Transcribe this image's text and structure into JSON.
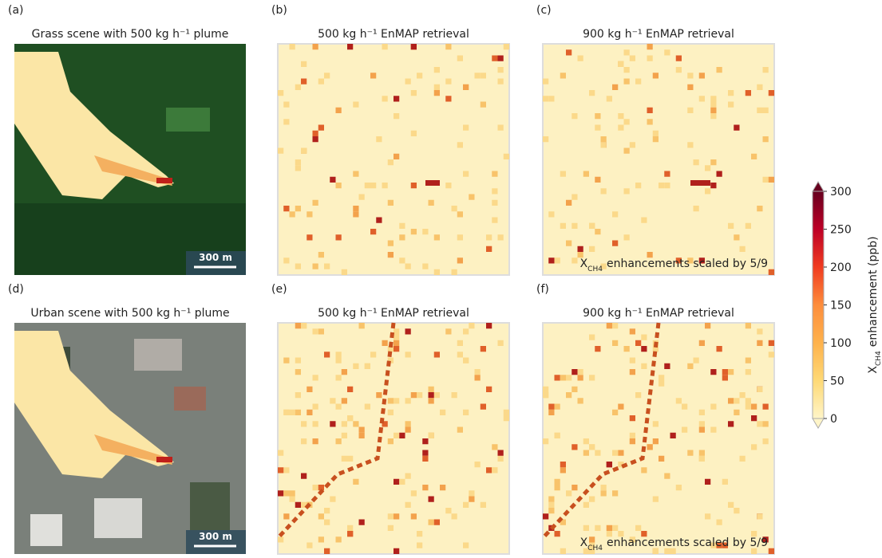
{
  "panels": [
    {
      "label": "(a)",
      "title": "Grass scene with 500 kg h⁻¹ plume",
      "scale_bar": "300 m"
    },
    {
      "label": "(b)",
      "title": "500 kg h⁻¹ EnMAP retrieval"
    },
    {
      "label": "(c)",
      "title": "900 kg h⁻¹ EnMAP retrieval",
      "note": {
        "x": "X",
        "sub": "CH4",
        "text": "enhancements scaled by 5/9"
      }
    },
    {
      "label": "(d)",
      "title": "Urban scene with 500 kg h⁻¹ plume",
      "scale_bar": "300 m"
    },
    {
      "label": "(e)",
      "title": "500 kg h⁻¹ EnMAP retrieval"
    },
    {
      "label": "(f)",
      "title": "900 kg h⁻¹ EnMAP retrieval",
      "note": {
        "x": "X",
        "sub": "CH4",
        "text": "enhancements scaled by 5/9"
      }
    }
  ],
  "colorbar": {
    "ylim": [
      0,
      300
    ],
    "yticks": [
      0,
      50,
      100,
      150,
      200,
      250,
      300
    ],
    "colors": [
      "#fff5c8",
      "#fed976",
      "#feb24c",
      "#fd8d3c",
      "#f03b20",
      "#bd0026",
      "#67001f"
    ],
    "label": {
      "x": "X",
      "sub": "CH4",
      "text": "enhancement  (ppb)"
    }
  }
}
